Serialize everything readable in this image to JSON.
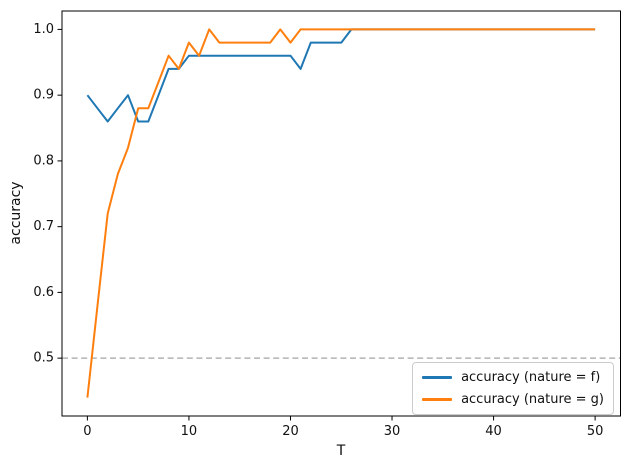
{
  "figure": {
    "background": "#ffffff",
    "text_color": "#111111",
    "spine_color": "#000000"
  },
  "chart_data": {
    "type": "line",
    "title": "",
    "xlabel": "T",
    "ylabel": "accuracy",
    "xlim": [
      -2.5,
      52.5
    ],
    "ylim": [
      0.412,
      1.028
    ],
    "xticks": [
      0,
      10,
      20,
      30,
      40,
      50
    ],
    "yticks": [
      0.5,
      0.6,
      0.7,
      0.8,
      0.9,
      1.0
    ],
    "grid": false,
    "legend_position": "lower right",
    "x": [
      0,
      1,
      2,
      3,
      4,
      5,
      6,
      7,
      8,
      9,
      10,
      11,
      12,
      13,
      14,
      15,
      16,
      17,
      18,
      19,
      20,
      21,
      22,
      23,
      24,
      25,
      26,
      27,
      28,
      29,
      30,
      31,
      32,
      33,
      34,
      35,
      36,
      37,
      38,
      39,
      40,
      41,
      42,
      43,
      44,
      45,
      46,
      47,
      48,
      49,
      50
    ],
    "series": [
      {
        "name": "accuracy (nature = f)",
        "color": "#1f77b4",
        "values": [
          0.9,
          0.88,
          0.86,
          0.88,
          0.9,
          0.86,
          0.86,
          0.9,
          0.94,
          0.94,
          0.96,
          0.96,
          0.96,
          0.96,
          0.96,
          0.96,
          0.96,
          0.96,
          0.96,
          0.96,
          0.96,
          0.94,
          0.98,
          0.98,
          0.98,
          0.98,
          1.0,
          1.0,
          1.0,
          1.0,
          1.0,
          1.0,
          1.0,
          1.0,
          1.0,
          1.0,
          1.0,
          1.0,
          1.0,
          1.0,
          1.0,
          1.0,
          1.0,
          1.0,
          1.0,
          1.0,
          1.0,
          1.0,
          1.0,
          1.0,
          1.0
        ]
      },
      {
        "name": "accuracy (nature = g)",
        "color": "#ff7f0e",
        "values": [
          0.44,
          0.58,
          0.72,
          0.78,
          0.82,
          0.88,
          0.88,
          0.92,
          0.96,
          0.94,
          0.98,
          0.96,
          1.0,
          0.98,
          0.98,
          0.98,
          0.98,
          0.98,
          0.98,
          1.0,
          0.98,
          1.0,
          1.0,
          1.0,
          1.0,
          1.0,
          1.0,
          1.0,
          1.0,
          1.0,
          1.0,
          1.0,
          1.0,
          1.0,
          1.0,
          1.0,
          1.0,
          1.0,
          1.0,
          1.0,
          1.0,
          1.0,
          1.0,
          1.0,
          1.0,
          1.0,
          1.0,
          1.0,
          1.0,
          1.0,
          1.0
        ]
      }
    ],
    "reference_line": {
      "y": 0.5,
      "style": "dashed",
      "color": "#b3b3b3"
    }
  }
}
